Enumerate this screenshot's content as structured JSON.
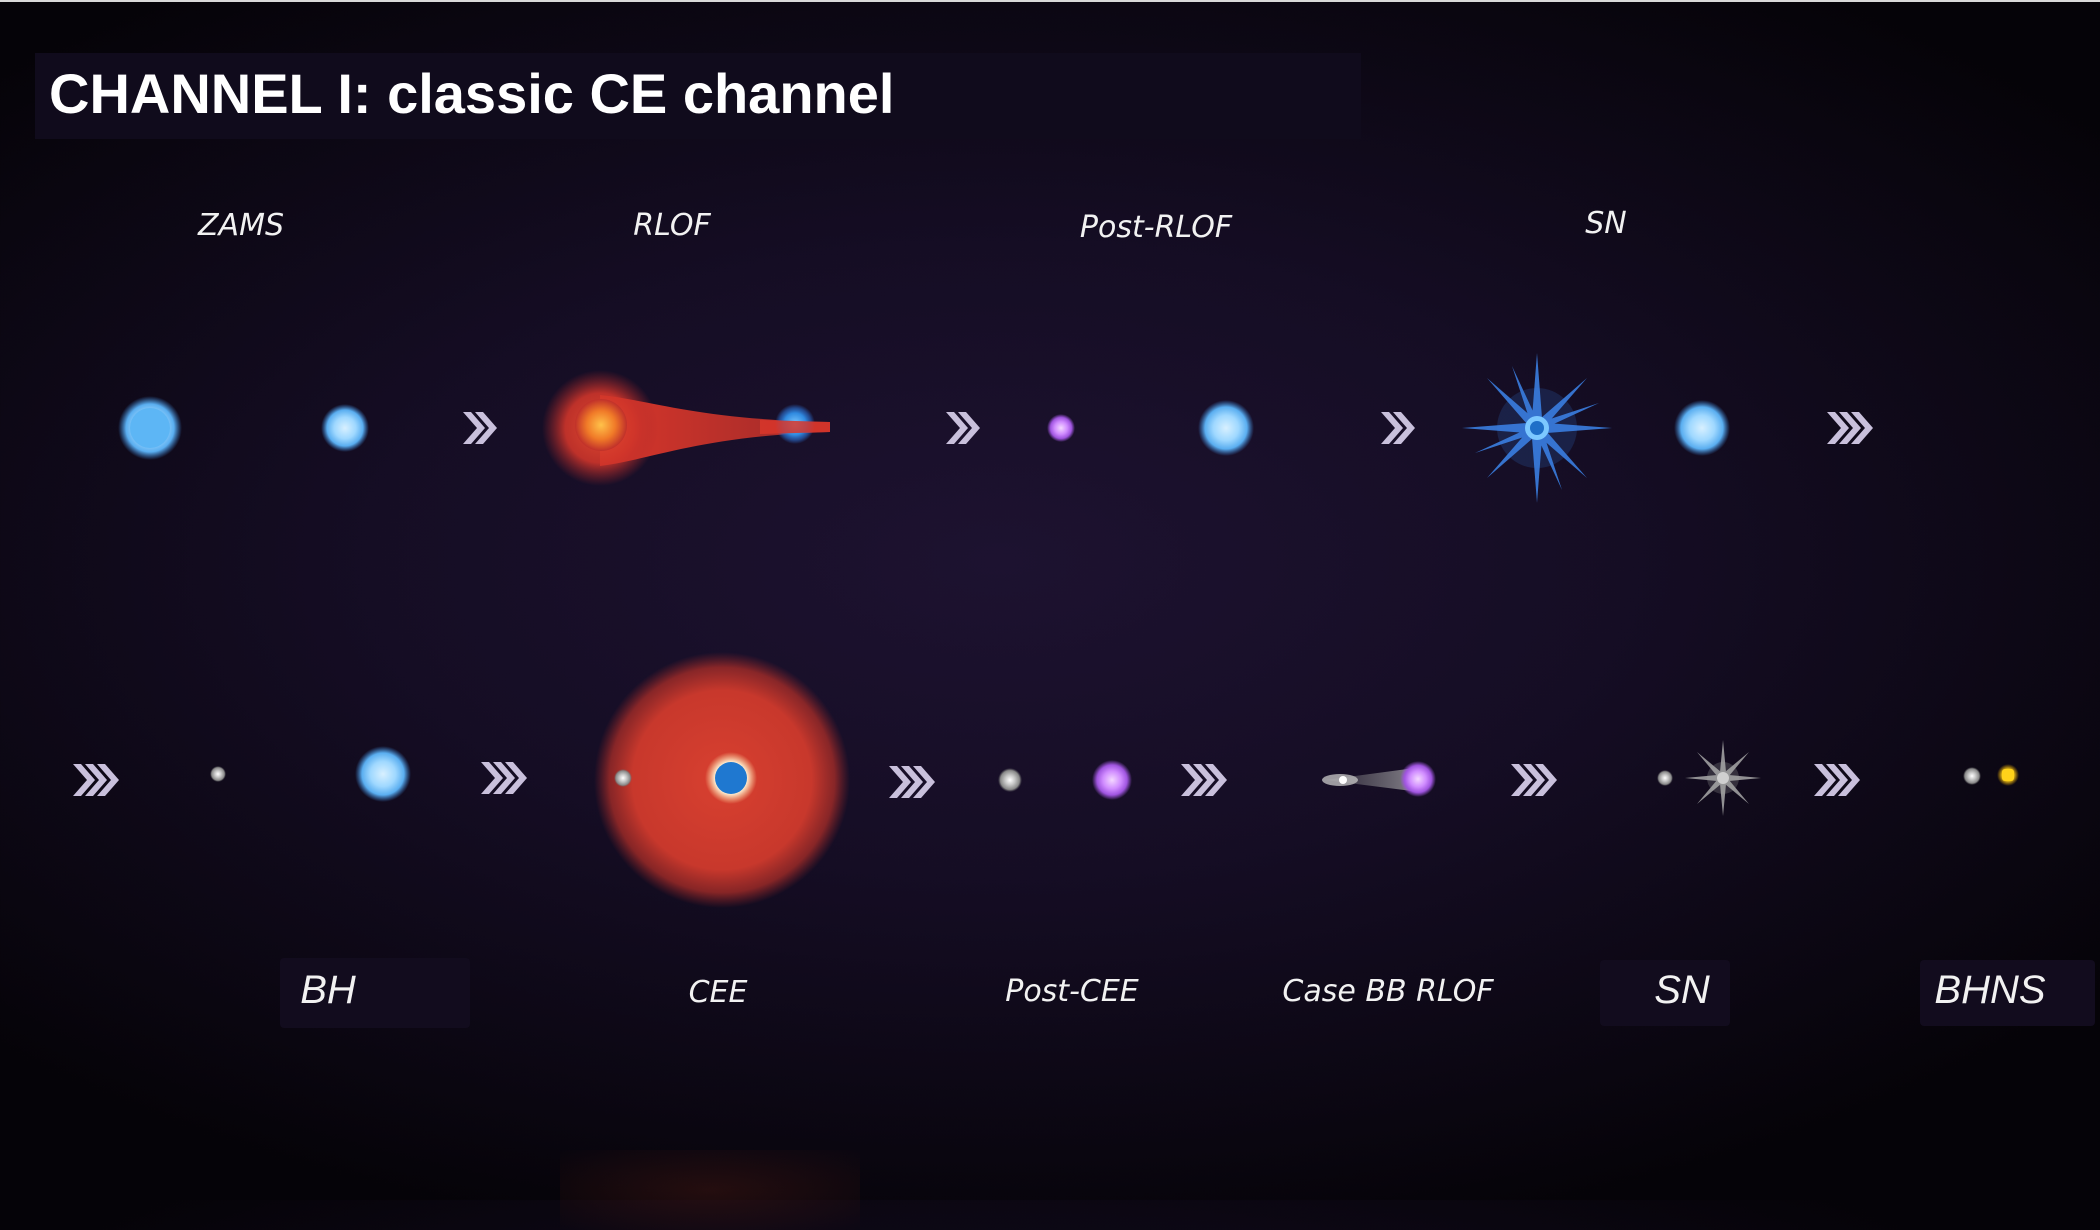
{
  "title": "CHANNEL I: classic CE channel",
  "row1_labels": {
    "zams": "ZAMS",
    "rlof": "RLOF",
    "post_rlof": "Post-RLOF",
    "sn": "SN"
  },
  "row2_labels": {
    "bh": "BH",
    "cee": "CEE",
    "post_cee": "Post-CEE",
    "case_bb_rlof": "Case BB RLOF",
    "sn": "SN",
    "bhns": "BHNS"
  },
  "colors": {
    "blue_star": "#8fd0ff",
    "red_giant": "#d8362a",
    "helium_star": "#d17cff",
    "compact_object": "#9a9a9a",
    "neutron_star": "#ffd21a",
    "arrow": "#c9c0dc"
  }
}
